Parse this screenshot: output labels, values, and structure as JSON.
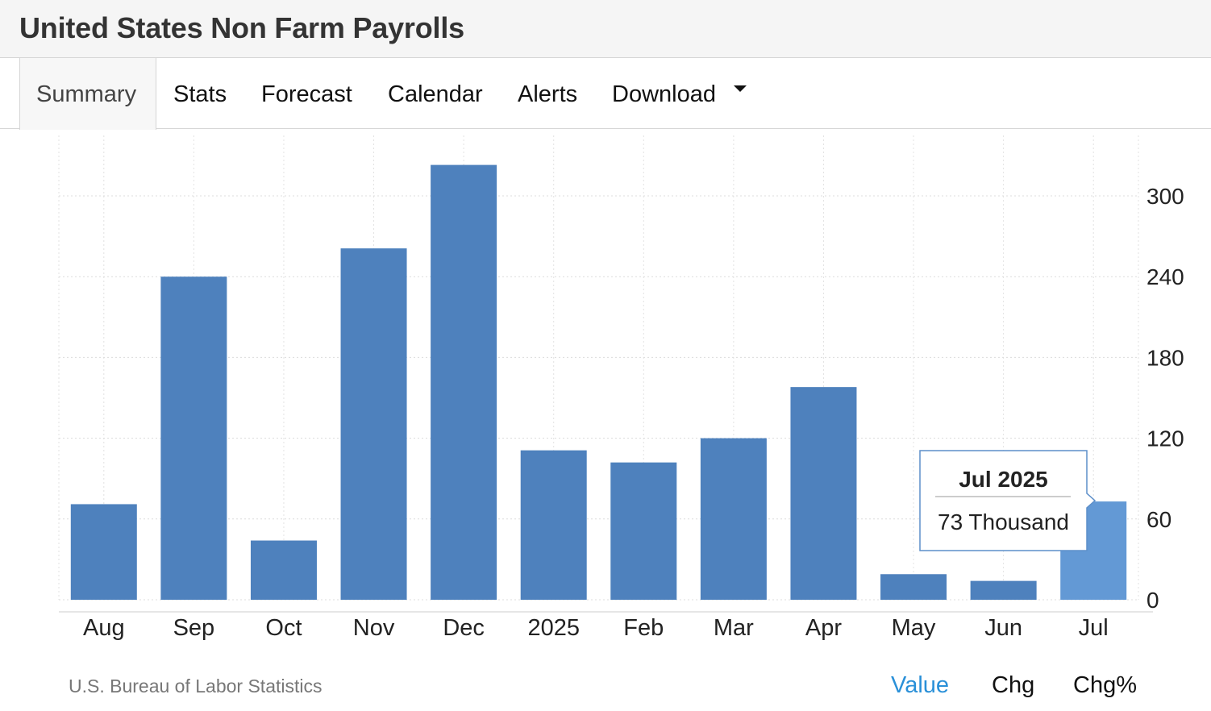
{
  "header": {
    "title": "United States Non Farm Payrolls"
  },
  "tabs": [
    {
      "label": "Summary",
      "active": true
    },
    {
      "label": "Stats"
    },
    {
      "label": "Forecast"
    },
    {
      "label": "Calendar"
    },
    {
      "label": "Alerts"
    },
    {
      "label": "Download",
      "has_dropdown": true
    }
  ],
  "chart_data": {
    "type": "bar",
    "categories": [
      "Aug",
      "Sep",
      "Oct",
      "Nov",
      "Dec",
      "2025",
      "Feb",
      "Mar",
      "Apr",
      "May",
      "Jun",
      "Jul"
    ],
    "values": [
      71,
      240,
      44,
      261,
      323,
      111,
      102,
      120,
      158,
      19,
      14,
      73
    ],
    "ylim": [
      0,
      340
    ],
    "yticks": [
      0,
      60,
      120,
      180,
      240,
      300
    ],
    "grid": true,
    "y_axis_side": "right",
    "colors": {
      "bar": "#4e81bd",
      "highlight": "#6399d5"
    },
    "highlight_index": 11,
    "tooltip": {
      "title": "Jul 2025",
      "value": "73 Thousand"
    }
  },
  "footer": {
    "source": "U.S. Bureau of Labor Statistics",
    "toggles": [
      {
        "label": "Value",
        "active": true
      },
      {
        "label": "Chg"
      },
      {
        "label": "Chg%"
      }
    ]
  }
}
